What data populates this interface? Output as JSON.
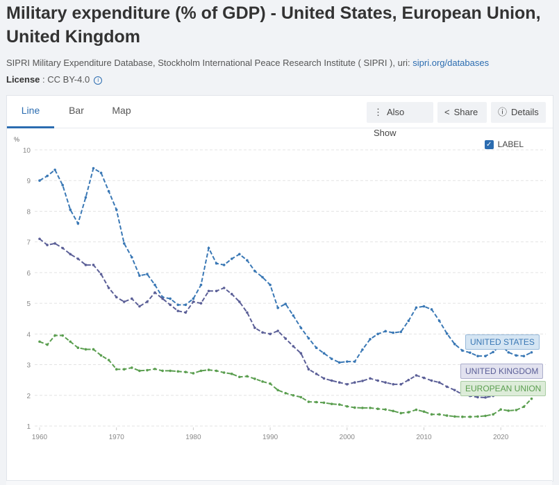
{
  "title": "Military expenditure (% of GDP) - United States, European Union, United Kingdom",
  "source": {
    "text": "SIPRI Military Expenditure Database, Stockholm International Peace Research Institute ( SIPRI ), uri: ",
    "link": "sipri.org/databases"
  },
  "license": {
    "label": "License",
    "value": " : CC BY-4.0"
  },
  "tabs": [
    {
      "label": "Line"
    },
    {
      "label": "Bar"
    },
    {
      "label": "Map"
    }
  ],
  "actions": {
    "also_show": "Also Show",
    "share": "Share",
    "details": "Details"
  },
  "label_toggle": {
    "label": "LABEL",
    "checked": true
  },
  "chart_data": {
    "type": "line",
    "ylabel": "%",
    "ylim": [
      1,
      10
    ],
    "yticks": [
      1,
      2,
      3,
      4,
      5,
      6,
      7,
      8,
      9,
      10
    ],
    "xticks": [
      1960,
      1970,
      1980,
      1990,
      2000,
      2010,
      2020
    ],
    "xlim": [
      1960,
      2024
    ],
    "grid": true,
    "x_start": 1960,
    "series": [
      {
        "name": "UNITED STATES",
        "color": "#3a78b5",
        "label_bg": "#d5e5f3",
        "values": [
          9.0,
          9.15,
          9.35,
          8.85,
          8.05,
          7.6,
          8.45,
          9.4,
          9.25,
          8.65,
          8.05,
          6.95,
          6.5,
          5.9,
          5.95,
          5.6,
          5.2,
          5.15,
          4.95,
          4.95,
          5.15,
          5.6,
          6.8,
          6.3,
          6.25,
          6.45,
          6.6,
          6.4,
          6.05,
          5.85,
          5.6,
          4.85,
          4.98,
          4.6,
          4.2,
          3.86,
          3.55,
          3.37,
          3.19,
          3.07,
          3.1,
          3.1,
          3.49,
          3.83,
          4.0,
          4.09,
          4.04,
          4.07,
          4.43,
          4.86,
          4.9,
          4.8,
          4.43,
          4.01,
          3.67,
          3.46,
          3.39,
          3.28,
          3.28,
          3.41,
          3.64,
          3.4,
          3.3,
          3.28,
          3.4
        ]
      },
      {
        "name": "UNITED KINGDOM",
        "color": "#5b5f97",
        "label_bg": "#e2e2ef",
        "values": [
          7.1,
          6.9,
          6.95,
          6.8,
          6.6,
          6.45,
          6.25,
          6.25,
          5.95,
          5.5,
          5.2,
          5.05,
          5.15,
          4.9,
          5.05,
          5.35,
          5.15,
          4.95,
          4.75,
          4.7,
          5.05,
          5.0,
          5.4,
          5.4,
          5.5,
          5.3,
          5.05,
          4.7,
          4.2,
          4.05,
          4.0,
          4.1,
          3.85,
          3.6,
          3.37,
          2.85,
          2.7,
          2.55,
          2.48,
          2.42,
          2.36,
          2.42,
          2.47,
          2.55,
          2.48,
          2.42,
          2.36,
          2.36,
          2.5,
          2.65,
          2.57,
          2.48,
          2.42,
          2.28,
          2.17,
          2.03,
          1.98,
          1.94,
          1.93,
          1.98,
          2.2,
          2.15,
          2.2,
          2.3,
          2.3
        ]
      },
      {
        "name": "EUROPEAN UNION",
        "color": "#5a9e4f",
        "label_bg": "#ddecd9",
        "values": [
          3.75,
          3.65,
          3.95,
          3.95,
          3.75,
          3.55,
          3.5,
          3.5,
          3.3,
          3.15,
          2.85,
          2.85,
          2.9,
          2.8,
          2.82,
          2.86,
          2.8,
          2.8,
          2.78,
          2.76,
          2.72,
          2.8,
          2.83,
          2.8,
          2.74,
          2.7,
          2.6,
          2.62,
          2.54,
          2.45,
          2.38,
          2.17,
          2.07,
          2.0,
          1.94,
          1.79,
          1.78,
          1.76,
          1.72,
          1.7,
          1.64,
          1.6,
          1.59,
          1.59,
          1.56,
          1.54,
          1.49,
          1.42,
          1.45,
          1.53,
          1.47,
          1.38,
          1.38,
          1.34,
          1.31,
          1.3,
          1.3,
          1.31,
          1.33,
          1.38,
          1.54,
          1.5,
          1.52,
          1.63,
          1.89
        ]
      }
    ]
  }
}
